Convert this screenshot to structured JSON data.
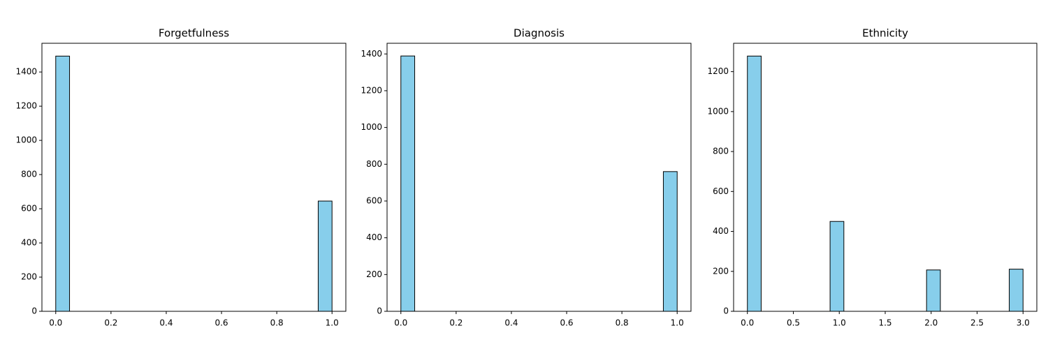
{
  "chart_data": [
    {
      "type": "histogram",
      "title": "Forgetfulness",
      "color": "#87ceeb",
      "bins": [
        0,
        0.05,
        0.1,
        0.15,
        0.2,
        0.25,
        0.3,
        0.35,
        0.4,
        0.45,
        0.5,
        0.55,
        0.6,
        0.65,
        0.7,
        0.75,
        0.8,
        0.85,
        0.9,
        0.95,
        1
      ],
      "values": [
        1493,
        0,
        0,
        0,
        0,
        0,
        0,
        0,
        0,
        0,
        0,
        0,
        0,
        0,
        0,
        0,
        0,
        0,
        0,
        645
      ],
      "xlim": [
        -0.05,
        1.05
      ],
      "ylim": [
        0,
        1568
      ],
      "xticks": [
        {
          "value": 0,
          "label": "0.0"
        },
        {
          "value": 0.2,
          "label": "0.2"
        },
        {
          "value": 0.4,
          "label": "0.4"
        },
        {
          "value": 0.6,
          "label": "0.6"
        },
        {
          "value": 0.8,
          "label": "0.8"
        },
        {
          "value": 1,
          "label": "1.0"
        }
      ],
      "yticks": [
        0,
        200,
        400,
        600,
        800,
        1000,
        1200,
        1400
      ]
    },
    {
      "type": "histogram",
      "title": "Diagnosis",
      "color": "#87ceeb",
      "bins": [
        0,
        0.05,
        0.1,
        0.15,
        0.2,
        0.25,
        0.3,
        0.35,
        0.4,
        0.45,
        0.5,
        0.55,
        0.6,
        0.65,
        0.7,
        0.75,
        0.8,
        0.85,
        0.9,
        0.95,
        1
      ],
      "values": [
        1389,
        0,
        0,
        0,
        0,
        0,
        0,
        0,
        0,
        0,
        0,
        0,
        0,
        0,
        0,
        0,
        0,
        0,
        0,
        760
      ],
      "xlim": [
        -0.05,
        1.05
      ],
      "ylim": [
        0,
        1458
      ],
      "xticks": [
        {
          "value": 0,
          "label": "0.0"
        },
        {
          "value": 0.2,
          "label": "0.2"
        },
        {
          "value": 0.4,
          "label": "0.4"
        },
        {
          "value": 0.6,
          "label": "0.6"
        },
        {
          "value": 0.8,
          "label": "0.8"
        },
        {
          "value": 1,
          "label": "1.0"
        }
      ],
      "yticks": [
        0,
        200,
        400,
        600,
        800,
        1000,
        1200,
        1400
      ]
    },
    {
      "type": "histogram",
      "title": "Ethnicity",
      "color": "#87ceeb",
      "bins": [
        0,
        0.15,
        0.3,
        0.45,
        0.6,
        0.75,
        0.9,
        1.05,
        1.2,
        1.35,
        1.5,
        1.65,
        1.8,
        1.95,
        2.1,
        2.25,
        2.4,
        2.55,
        2.7,
        2.85,
        3
      ],
      "values": [
        1278,
        0,
        0,
        0,
        0,
        0,
        450,
        0,
        0,
        0,
        0,
        0,
        0,
        207,
        0,
        0,
        0,
        0,
        0,
        211
      ],
      "xlim": [
        -0.15,
        3.15
      ],
      "ylim": [
        0,
        1342
      ],
      "xticks": [
        {
          "value": 0,
          "label": "0.0"
        },
        {
          "value": 0.5,
          "label": "0.5"
        },
        {
          "value": 1,
          "label": "1.0"
        },
        {
          "value": 1.5,
          "label": "1.5"
        },
        {
          "value": 2,
          "label": "2.0"
        },
        {
          "value": 2.5,
          "label": "2.5"
        },
        {
          "value": 3,
          "label": "3.0"
        }
      ],
      "yticks": [
        0,
        200,
        400,
        600,
        800,
        1000,
        1200
      ]
    }
  ]
}
